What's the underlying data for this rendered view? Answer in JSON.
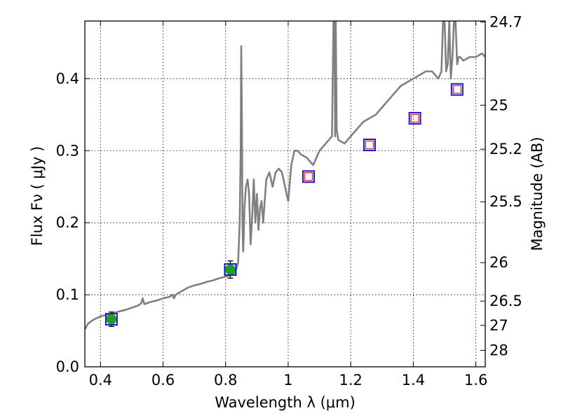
{
  "chart_data": {
    "type": "line",
    "xlabel": "Wavelength  λ (μm)",
    "ylabel": "Flux  Fν  ( μJy )",
    "ylabel_right": "Magnitude (AB)",
    "xlim": [
      0.35,
      1.63
    ],
    "ylim": [
      0.0,
      0.48
    ],
    "grid": true,
    "x_ticks": [
      0.4,
      0.6,
      0.8,
      1.0,
      1.2,
      1.4,
      1.6
    ],
    "x_tick_labels": [
      "0.4",
      "0.6",
      "0.8",
      "1",
      "1.2",
      "1.4",
      "1.6"
    ],
    "y_ticks": [
      0.0,
      0.1,
      0.2,
      0.3,
      0.4
    ],
    "y_tick_labels": [
      "0.0",
      "0.1",
      "0.2",
      "0.3",
      "0.4"
    ],
    "right_ticks": [
      {
        "label": "24.7",
        "value": 24.7
      },
      {
        "label": "25",
        "value": 25
      },
      {
        "label": "25.2",
        "value": 25.2
      },
      {
        "label": "25.5",
        "value": 25.5
      },
      {
        "label": "26",
        "value": 26
      },
      {
        "label": "26.5",
        "value": 26.5
      },
      {
        "label": "27",
        "value": 27
      },
      {
        "label": "28",
        "value": 28
      }
    ],
    "series": [
      {
        "role": "model_sed",
        "color": "#808080",
        "x": [
          0.35,
          0.36,
          0.37,
          0.38,
          0.39,
          0.4,
          0.42,
          0.44,
          0.46,
          0.48,
          0.5,
          0.52,
          0.53,
          0.535,
          0.54,
          0.56,
          0.58,
          0.6,
          0.62,
          0.63,
          0.635,
          0.64,
          0.66,
          0.68,
          0.7,
          0.72,
          0.74,
          0.76,
          0.78,
          0.8,
          0.82,
          0.83,
          0.84,
          0.845,
          0.848,
          0.85,
          0.852,
          0.854,
          0.856,
          0.858,
          0.86,
          0.865,
          0.87,
          0.875,
          0.88,
          0.885,
          0.89,
          0.895,
          0.9,
          0.905,
          0.91,
          0.915,
          0.92,
          0.93,
          0.94,
          0.945,
          0.95,
          0.96,
          0.97,
          0.98,
          0.985,
          0.99,
          0.995,
          1.0,
          1.01,
          1.02,
          1.03,
          1.04,
          1.06,
          1.08,
          1.1,
          1.12,
          1.14,
          1.145,
          1.148,
          1.15,
          1.152,
          1.155,
          1.16,
          1.18,
          1.2,
          1.22,
          1.24,
          1.26,
          1.28,
          1.3,
          1.32,
          1.34,
          1.36,
          1.38,
          1.4,
          1.42,
          1.44,
          1.46,
          1.48,
          1.49,
          1.495,
          1.5,
          1.505,
          1.51,
          1.515,
          1.52,
          1.525,
          1.53,
          1.535,
          1.54,
          1.545,
          1.55,
          1.56,
          1.58,
          1.6,
          1.62,
          1.63
        ],
        "values": [
          0.052,
          0.06,
          0.063,
          0.066,
          0.068,
          0.07,
          0.072,
          0.074,
          0.077,
          0.079,
          0.082,
          0.085,
          0.088,
          0.095,
          0.087,
          0.09,
          0.092,
          0.095,
          0.097,
          0.1,
          0.095,
          0.1,
          0.105,
          0.11,
          0.113,
          0.115,
          0.118,
          0.12,
          0.123,
          0.125,
          0.128,
          0.13,
          0.145,
          0.2,
          0.3,
          0.445,
          0.35,
          0.2,
          0.16,
          0.18,
          0.22,
          0.25,
          0.26,
          0.24,
          0.17,
          0.21,
          0.26,
          0.2,
          0.24,
          0.19,
          0.22,
          0.23,
          0.2,
          0.26,
          0.27,
          0.26,
          0.25,
          0.27,
          0.275,
          0.27,
          0.26,
          0.25,
          0.24,
          0.23,
          0.28,
          0.3,
          0.3,
          0.295,
          0.29,
          0.28,
          0.3,
          0.31,
          0.32,
          0.48,
          0.48,
          0.32,
          0.48,
          0.33,
          0.315,
          0.31,
          0.32,
          0.33,
          0.34,
          0.345,
          0.35,
          0.36,
          0.37,
          0.38,
          0.39,
          0.395,
          0.4,
          0.405,
          0.41,
          0.41,
          0.4,
          0.41,
          0.48,
          0.48,
          0.41,
          0.42,
          0.48,
          0.4,
          0.43,
          0.48,
          0.48,
          0.42,
          0.43,
          0.43,
          0.425,
          0.43,
          0.43,
          0.435,
          0.43
        ]
      },
      {
        "role": "measured_flux",
        "marker": "circle",
        "color": "#1ea11e",
        "x": [
          0.435,
          0.815
        ],
        "values": [
          0.066,
          0.135
        ],
        "errors": [
          0.01,
          0.012
        ]
      },
      {
        "role": "model_photometry",
        "marker": "square",
        "color": "#1a1ad0",
        "x": [
          0.435,
          0.815,
          1.065,
          1.26,
          1.405,
          1.54
        ],
        "values": [
          0.066,
          0.135,
          0.264,
          0.308,
          0.345,
          0.385
        ]
      },
      {
        "role": "upper_limits",
        "marker": "square",
        "color": "#e0202a",
        "x": [
          1.065,
          1.26,
          1.405,
          1.54
        ],
        "values": [
          0.264,
          0.308,
          0.345,
          0.385
        ]
      }
    ]
  }
}
